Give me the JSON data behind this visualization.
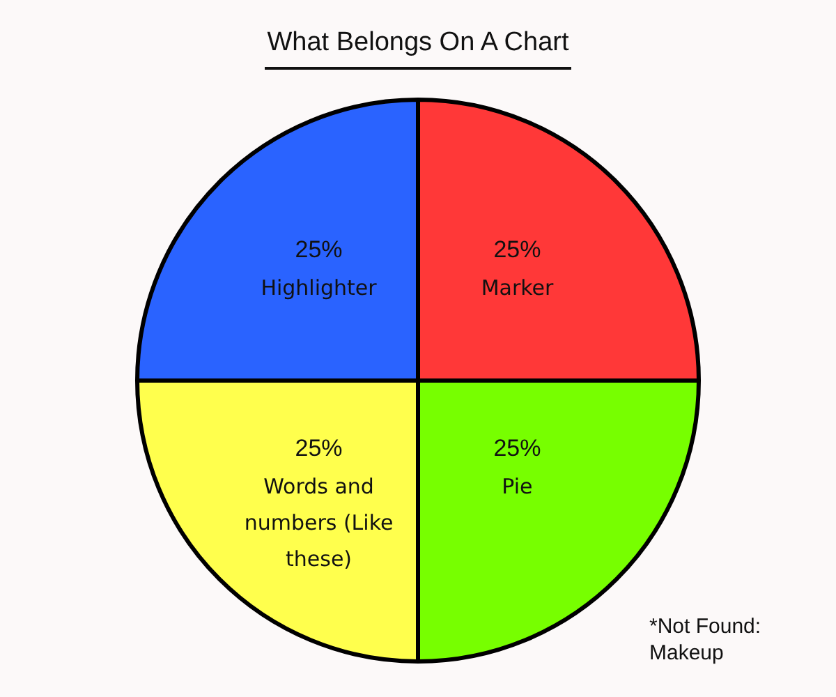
{
  "chart_data": {
    "type": "pie",
    "title": "What Belongs On A Chart",
    "categories": [
      "Marker",
      "Pie",
      "Words and numbers (Like these)",
      "Highlighter"
    ],
    "values": [
      25,
      25,
      25,
      25
    ],
    "colors": [
      "#ff3838",
      "#77ff00",
      "#ffff4d",
      "#2a63ff"
    ],
    "value_labels": [
      "25%",
      "25%",
      "25%",
      "25%"
    ],
    "legend": false,
    "annotations": [
      "*Not Found: Makeup"
    ]
  }
}
